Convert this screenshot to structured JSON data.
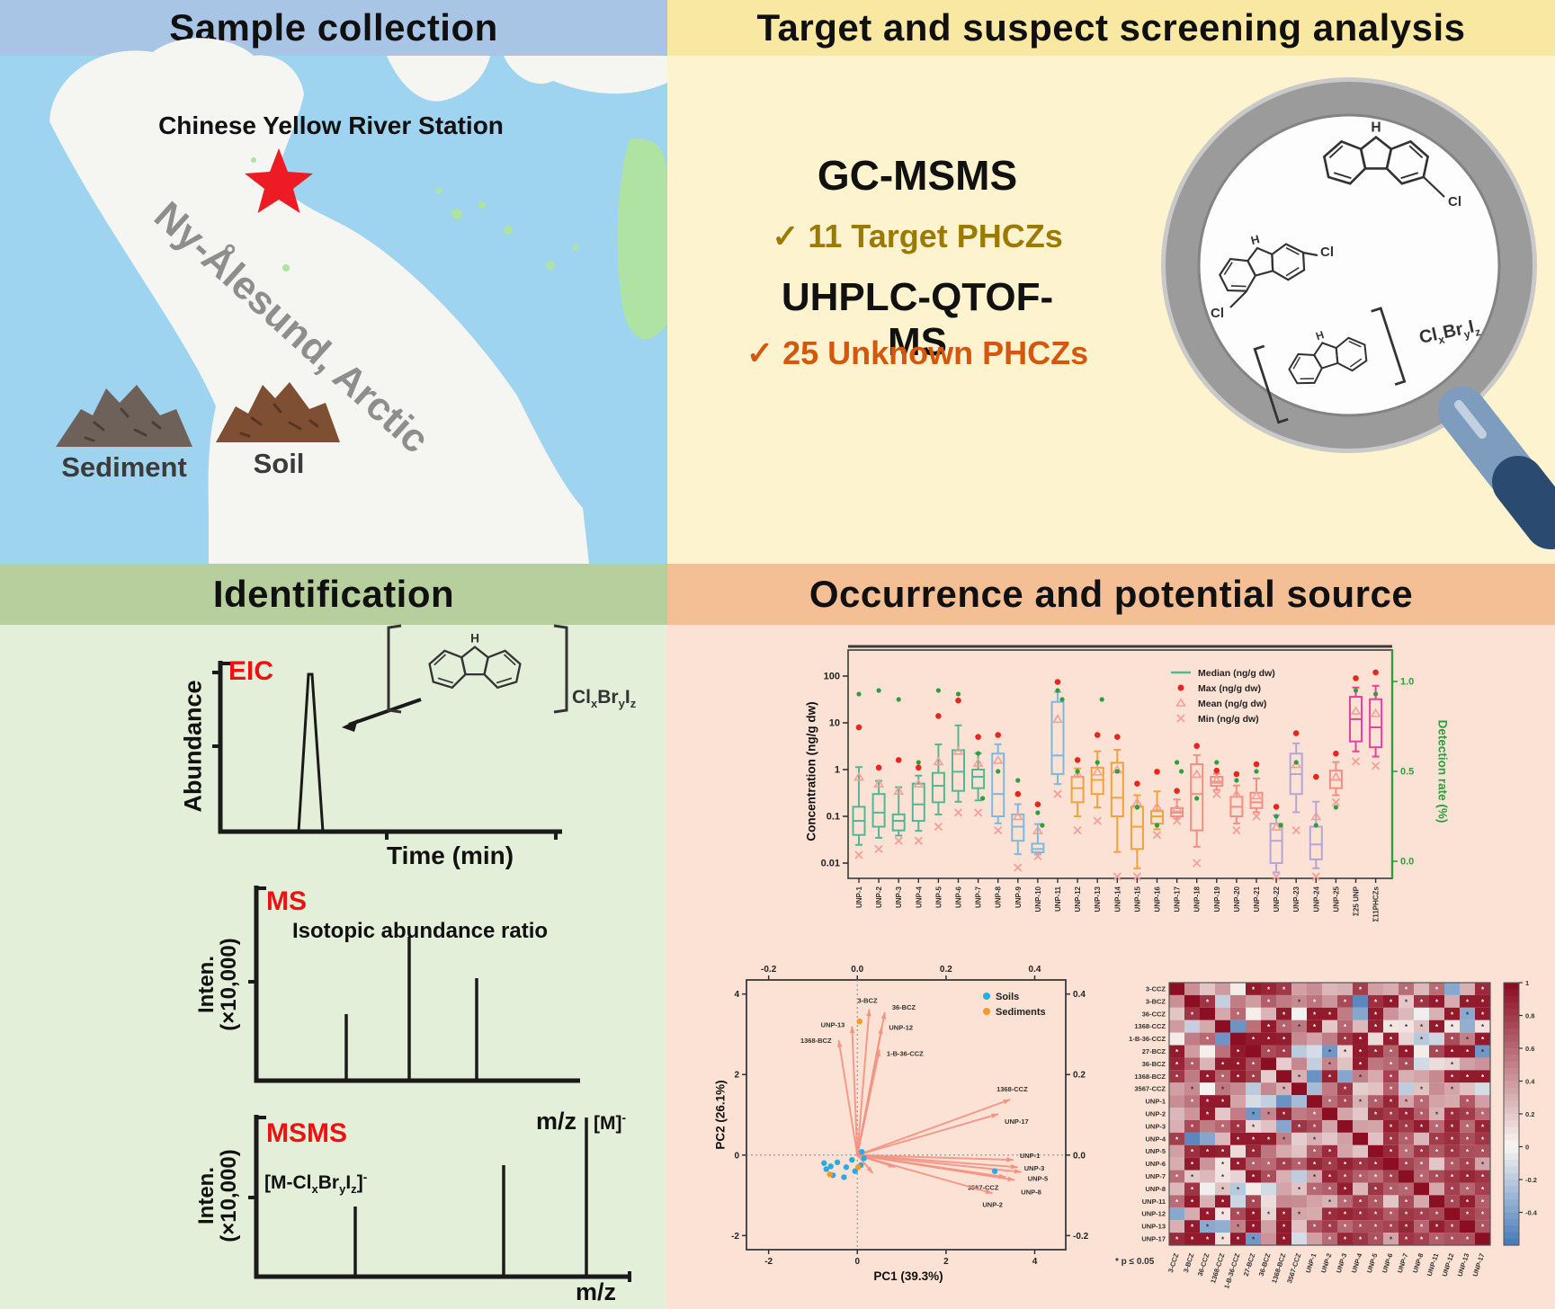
{
  "panels": {
    "sample": {
      "header": "Sample collection",
      "station_label": "Chinese Yellow River Station",
      "region_label": "Ny-Ålesund, Arctic",
      "pile1_label": "Sediment",
      "pile2_label": "Soil"
    },
    "screening": {
      "header": "Target and suspect screening analysis",
      "method1": "GC-MSMS",
      "check1": "✓",
      "result1": "11 Target PHCZs",
      "method2": "UHPLC-QTOF-MS",
      "check2": "✓",
      "result2": "25 Unknown PHCZs",
      "cl_label": "Cl",
      "h_label": "H",
      "formula": {
        "p1": "Cl",
        "s1": "x",
        "p2": "Br",
        "s2": "y",
        "p3": "I",
        "s3": "z"
      }
    },
    "identification": {
      "header": "Identification",
      "eic": {
        "label": "EIC",
        "ylabel": "Abundance",
        "xlabel": "Time (min)"
      },
      "ms": {
        "label": "MS",
        "annotation": "Isotopic abundance ratio",
        "ylabel1": "Inten.",
        "ylabel2": "(×10,000)",
        "xlabel": "m/z"
      },
      "msms": {
        "label": "MSMS",
        "ylabel1": "Inten.",
        "ylabel2": "(×10,000)",
        "xlabel": "m/z",
        "parent_pre": "[M]",
        "parent_sup": "-",
        "frag": {
          "pre": "[M-Cl",
          "s1": "x",
          "m1": "Br",
          "s2": "y",
          "m2": "I",
          "s3": "z",
          "post": "]",
          "sup": "-"
        }
      }
    },
    "occurrence": {
      "header": "Occurrence and potential source"
    }
  },
  "chart_data": [
    {
      "type": "box",
      "ylabel": "Concentration (ng/g dw)",
      "ylabel_right": "Detection rate (%)",
      "yticks": [
        "100",
        "10",
        "1",
        "0.1",
        "0.01"
      ],
      "ytick_values": [
        100,
        10,
        1,
        0.1,
        0.01
      ],
      "yticks_right": [
        "1.0",
        "0.5",
        "0.0"
      ],
      "ytick_right_values": [
        1,
        0.5,
        0
      ],
      "legend": [
        "Median (ng/g dw)",
        "Max (ng/g dw)",
        "Mean (ng/g dw)",
        "Min (ng/g dw)"
      ],
      "palette": {
        "teal": "#52b794",
        "blue": "#7db9df",
        "orange": "#f0a23c",
        "salmon": "#ef8f85",
        "purple": "#b4a6d6",
        "pink": "#e8419d"
      },
      "boxes": [
        {
          "label": "UNP-1",
          "g": "teal",
          "min": 0.015,
          "q1": 0.04,
          "med": 0.08,
          "q3": 0.16,
          "max": 8,
          "mean": 0.7,
          "det": 0.93,
          "det2": null
        },
        {
          "label": "UNP-2",
          "g": "teal",
          "min": 0.02,
          "q1": 0.06,
          "med": 0.12,
          "q3": 0.3,
          "max": 1.1,
          "mean": 0.5,
          "det": 0.95,
          "det2": null
        },
        {
          "label": "UNP-3",
          "g": "teal",
          "min": 0.03,
          "q1": 0.05,
          "med": 0.08,
          "q3": 0.11,
          "max": 1.6,
          "mean": 0.35,
          "det": 0.9,
          "det2": null
        },
        {
          "label": "UNP-4",
          "g": "teal",
          "min": 0.03,
          "q1": 0.08,
          "med": 0.18,
          "q3": 0.5,
          "max": 1.1,
          "mean": 0.5,
          "det": 0.55,
          "det2": null
        },
        {
          "label": "UNP-5",
          "g": "teal",
          "min": 0.06,
          "q1": 0.2,
          "med": 0.45,
          "q3": 0.85,
          "max": 14,
          "mean": 1.5,
          "det": 0.95,
          "det2": null
        },
        {
          "label": "UNP-6",
          "g": "teal",
          "min": 0.12,
          "q1": 0.35,
          "med": 0.9,
          "q3": 2.6,
          "max": 30,
          "mean": 2.5,
          "det": 0.93,
          "det2": null
        },
        {
          "label": "UNP-7",
          "g": "teal",
          "min": 0.12,
          "q1": 0.4,
          "med": 0.7,
          "q3": 1.0,
          "max": 5,
          "mean": 1.4,
          "det": 0.6,
          "det2": 0.35
        },
        {
          "label": "UNP-8",
          "g": "blue",
          "min": 0.05,
          "q1": 0.1,
          "med": 0.3,
          "q3": 2.2,
          "max": 5.5,
          "mean": 1.6,
          "det": 0.5,
          "det2": null
        },
        {
          "label": "UNP-9",
          "g": "blue",
          "min": 0.008,
          "q1": 0.03,
          "med": 0.06,
          "q3": 0.11,
          "max": 0.3,
          "mean": 0.1,
          "det": 0.45,
          "det2": null
        },
        {
          "label": "UNP-10",
          "g": "blue",
          "min": 0.014,
          "q1": 0.017,
          "med": 0.02,
          "q3": 0.026,
          "max": 0.18,
          "mean": 0.05,
          "det": 0.27,
          "det2": 0.2
        },
        {
          "label": "UNP-11",
          "g": "blue",
          "min": 0.3,
          "q1": 0.8,
          "med": 2,
          "q3": 28,
          "max": 75,
          "mean": 12,
          "det": 0.95,
          "det2": 0.9
        },
        {
          "label": "UNP-12",
          "g": "orange",
          "min": 0.05,
          "q1": 0.2,
          "med": 0.4,
          "q3": 0.7,
          "max": 1.6,
          "mean": 0.8,
          "det": 0.5,
          "det2": null
        },
        {
          "label": "UNP-13",
          "g": "orange",
          "min": 0.08,
          "q1": 0.3,
          "med": 0.6,
          "q3": 1.1,
          "max": 5.5,
          "mean": 0.9,
          "det": 0.55,
          "det2": 0.9
        },
        {
          "label": "UNP-14",
          "g": "orange",
          "min": 0.003,
          "q1": 0.1,
          "med": 0.25,
          "q3": 1.4,
          "max": 5,
          "mean": 1.0,
          "det": 0.5,
          "det2": null
        },
        {
          "label": "UNP-15",
          "g": "orange",
          "min": 0.003,
          "q1": 0.02,
          "med": 0.06,
          "q3": 0.16,
          "max": 0.5,
          "mean": 0.2,
          "det": 0.3,
          "det2": null
        },
        {
          "label": "UNP-16",
          "g": "orange",
          "min": 0.04,
          "q1": 0.07,
          "med": 0.1,
          "q3": 0.13,
          "max": 0.9,
          "mean": 0.16,
          "det": 0.2,
          "det2": null
        },
        {
          "label": "UNP-17",
          "g": "salmon",
          "min": 0.08,
          "q1": 0.1,
          "med": 0.12,
          "q3": 0.15,
          "max": 0.35,
          "mean": 0.15,
          "det": 0.55,
          "det2": 0.5
        },
        {
          "label": "UNP-18",
          "g": "salmon",
          "min": 0.01,
          "q1": 0.05,
          "med": 0.3,
          "q3": 1.3,
          "max": 3.2,
          "mean": 0.8,
          "det": 0.35,
          "det2": null
        },
        {
          "label": "UNP-19",
          "g": "salmon",
          "min": 0.3,
          "q1": 0.45,
          "med": 0.55,
          "q3": 0.7,
          "max": 0.95,
          "mean": 0.6,
          "det": 0.55,
          "det2": null
        },
        {
          "label": "UNP-20",
          "g": "salmon",
          "min": 0.05,
          "q1": 0.1,
          "med": 0.16,
          "q3": 0.26,
          "max": 0.8,
          "mean": 0.3,
          "det": 0.45,
          "det2": null
        },
        {
          "label": "UNP-21",
          "g": "salmon",
          "min": 0.1,
          "q1": 0.15,
          "med": 0.2,
          "q3": 0.32,
          "max": 1.3,
          "mean": 0.28,
          "det": 0.5,
          "det2": null
        },
        {
          "label": "UNP-22",
          "g": "purple",
          "min": 0.004,
          "q1": 0.01,
          "med": 0.03,
          "q3": 0.07,
          "max": 0.16,
          "mean": 0.06,
          "det": 0.25,
          "det2": 0.2
        },
        {
          "label": "UNP-23",
          "g": "purple",
          "min": 0.05,
          "q1": 0.3,
          "med": 0.8,
          "q3": 2.2,
          "max": 6,
          "mean": 1.3,
          "det": 0.55,
          "det2": null
        },
        {
          "label": "UNP-24",
          "g": "purple",
          "min": 0.005,
          "q1": 0.012,
          "med": 0.025,
          "q3": 0.06,
          "max": 0.7,
          "mean": 0.1,
          "det": 0.2,
          "det2": null
        },
        {
          "label": "UNP-25",
          "g": "salmon",
          "min": 0.2,
          "q1": 0.4,
          "med": 0.6,
          "q3": 0.95,
          "max": 2.2,
          "mean": 0.7,
          "det": 0.3,
          "det2": null
        },
        {
          "label": "Σ25 UNP",
          "g": "pink",
          "min": 1.5,
          "q1": 4,
          "med": 12,
          "q3": 36,
          "max": 90,
          "mean": 18,
          "det": 0.95,
          "det2": null
        },
        {
          "label": "Σ11PHCZs",
          "g": "pink",
          "min": 1.2,
          "q1": 3,
          "med": 8,
          "q3": 32,
          "max": 120,
          "mean": 16,
          "det": 0.93,
          "det2": null
        }
      ]
    },
    {
      "type": "scatter",
      "xlabel": "PC1 (39.3%)",
      "ylabel": "PC2 (26.1%)",
      "xticks": [
        -2,
        0,
        2,
        4
      ],
      "yticks": [
        -2,
        0,
        2,
        4
      ],
      "top_ticks": [
        "-0.2",
        "0.0",
        "0.2",
        "0.4"
      ],
      "right_ticks": [
        "0.4",
        "0.2",
        "0.0",
        "-0.2"
      ],
      "legend": [
        {
          "name": "Soils",
          "color": "#29abe2"
        },
        {
          "name": "Sediments",
          "color": "#f59a23"
        }
      ],
      "loadings": [
        {
          "label": "3-BCZ",
          "x": 0.27,
          "y": 3.62,
          "ox": -2,
          "oy": -7,
          "anchor": "middle"
        },
        {
          "label": "36-BCZ",
          "x": 0.62,
          "y": 3.55,
          "ox": 8,
          "oy": -3,
          "anchor": "start"
        },
        {
          "label": "UNP-13",
          "x": -0.12,
          "y": 3.2,
          "ox": -8,
          "oy": 1,
          "anchor": "end"
        },
        {
          "label": "UNP-12",
          "x": 0.55,
          "y": 3.18,
          "ox": 8,
          "oy": 3,
          "anchor": "start"
        },
        {
          "label": "1368-BCZ",
          "x": -0.42,
          "y": 2.85,
          "ox": -8,
          "oy": 3,
          "anchor": "end"
        },
        {
          "label": "1-B-36-CCZ",
          "x": 0.5,
          "y": 2.62,
          "ox": 8,
          "oy": 7,
          "anchor": "start"
        },
        {
          "label": "1368-CCZ",
          "x": 3.45,
          "y": 1.38,
          "ox": 2,
          "oy": -9,
          "anchor": "middle"
        },
        {
          "label": "UNP-17",
          "x": 3.18,
          "y": 1.02,
          "ox": 7,
          "oy": 11,
          "anchor": "start"
        },
        {
          "label": "UNP-1",
          "x": 3.52,
          "y": -0.12,
          "ox": 7,
          "oy": -2,
          "anchor": "start"
        },
        {
          "label": "UNP-3",
          "x": 3.62,
          "y": -0.3,
          "ox": 7,
          "oy": 4,
          "anchor": "start"
        },
        {
          "label": "UNP-5",
          "x": 3.7,
          "y": -0.42,
          "ox": 7,
          "oy": 10,
          "anchor": "start"
        },
        {
          "label": "3567-CCZ",
          "x": 3.35,
          "y": -0.55,
          "ox": -8,
          "oy": 14,
          "anchor": "end"
        },
        {
          "label": "UNP-8",
          "x": 3.55,
          "y": -0.62,
          "ox": 7,
          "oy": 16,
          "anchor": "start"
        },
        {
          "label": "UNP-2",
          "x": 3.05,
          "y": -0.95,
          "ox": 0,
          "oy": 15,
          "anchor": "middle"
        },
        {
          "label": "",
          "x": 0.85,
          "y": -0.3,
          "ox": 0,
          "oy": 0,
          "anchor": "start"
        },
        {
          "label": "",
          "x": 0.35,
          "y": -0.45,
          "ox": 0,
          "oy": 0,
          "anchor": "start"
        }
      ],
      "soils": [
        [
          -0.75,
          -0.2
        ],
        [
          -0.7,
          -0.35
        ],
        [
          -0.6,
          -0.28
        ],
        [
          -0.55,
          -0.5
        ],
        [
          -0.45,
          -0.18
        ],
        [
          -0.3,
          -0.55
        ],
        [
          -0.25,
          -0.3
        ],
        [
          -0.12,
          -0.12
        ],
        [
          -0.05,
          -0.4
        ],
        [
          0.08,
          -0.25
        ],
        [
          0.15,
          -0.08
        ],
        [
          0.1,
          0.08
        ],
        [
          3.1,
          -0.4
        ]
      ],
      "sediments": [
        [
          -0.62,
          -0.48
        ],
        [
          0.02,
          -0.3
        ],
        [
          0.05,
          3.32
        ]
      ]
    },
    {
      "type": "heatmap",
      "labels": [
        "3-CCZ",
        "3-BCZ",
        "36-CCZ",
        "1368-CCZ",
        "1-B-36-CCZ",
        "27-BCZ",
        "36-BCZ",
        "1368-BCZ",
        "3567-CCZ",
        "UNP-1",
        "UNP-2",
        "UNP-3",
        "UNP-4",
        "UNP-5",
        "UNP-6",
        "UNP-7",
        "UNP-8",
        "UNP-11",
        "UNP-12",
        "UNP-13",
        "UNP-17"
      ],
      "colorbar_ticks": [
        "1",
        "0.8",
        "0.6",
        "0.4",
        "0.2",
        "0",
        "-0.2",
        "-0.4"
      ],
      "colorbar_tick_values": [
        1,
        0.8,
        0.6,
        0.4,
        0.2,
        0,
        -0.2,
        -0.4
      ],
      "value_range": [
        -0.6,
        1
      ],
      "seed": 11,
      "note": "* p ≤ 0.05"
    }
  ]
}
